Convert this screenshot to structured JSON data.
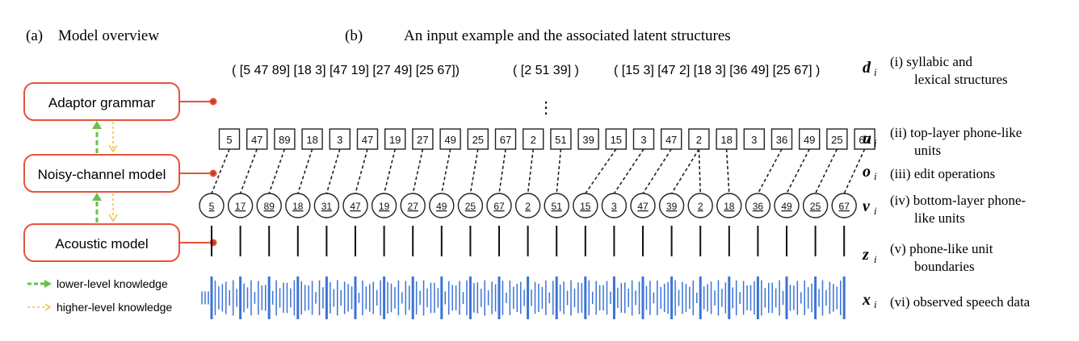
{
  "panel_a": {
    "label": "(a)",
    "title": "Model overview",
    "boxes": [
      "Adaptor grammar",
      "Noisy-channel model",
      "Acoustic model"
    ],
    "legend": {
      "lower": "lower-level knowledge",
      "higher": "higher-level knowledge"
    }
  },
  "panel_b": {
    "label": "(b)",
    "title": "An input example and the associated latent structures",
    "groups": [
      "( [5 47 89] [18 3] [47 19] [27 49] [25 67])",
      "( [2 51 39] )",
      "( [15 3] [47 2] [18 3] [36 49] [25 67] )"
    ],
    "ellipsis": "⋮",
    "top_units": [
      "5",
      "47",
      "89",
      "18",
      "3",
      "47",
      "19",
      "27",
      "49",
      "25",
      "67",
      "2",
      "51",
      "39",
      "15",
      "3",
      "47",
      "2",
      "18",
      "3",
      "36",
      "49",
      "25",
      "67"
    ],
    "bottom_units": [
      "5",
      "17",
      "89",
      "18",
      "31",
      "47",
      "19",
      "27",
      "49",
      "25",
      "67",
      "2",
      "51",
      "15",
      "3",
      "47",
      "39",
      "2",
      "18",
      "36",
      "49",
      "25",
      "67"
    ]
  },
  "rows": [
    {
      "var": "d",
      "sub": "i",
      "label_lines": [
        "(i)  syllabic and",
        "lexical structures"
      ]
    },
    {
      "var": "u",
      "sub": "i",
      "label_lines": [
        "(ii)  top-layer phone-like",
        "units"
      ]
    },
    {
      "var": "o",
      "sub": "i",
      "label_lines": [
        "(iii)  edit operations"
      ]
    },
    {
      "var": "v⃗",
      "sub": "i",
      "label_lines": [
        "(iv)  bottom-layer phone-",
        "like units"
      ]
    },
    {
      "var": "z",
      "sub": "i",
      "label_lines": [
        "(v)  phone-like unit",
        "boundaries"
      ]
    },
    {
      "var": "x",
      "sub": "i",
      "label_lines": [
        "(vi) observed speech data"
      ]
    }
  ],
  "colors": {
    "box_border": "#e8523a",
    "dot": "#c0392b",
    "green_arrow": "#6abf4b",
    "orange_arrow": "#f5c242",
    "wave": "#3b73d6",
    "text": "#111111"
  }
}
